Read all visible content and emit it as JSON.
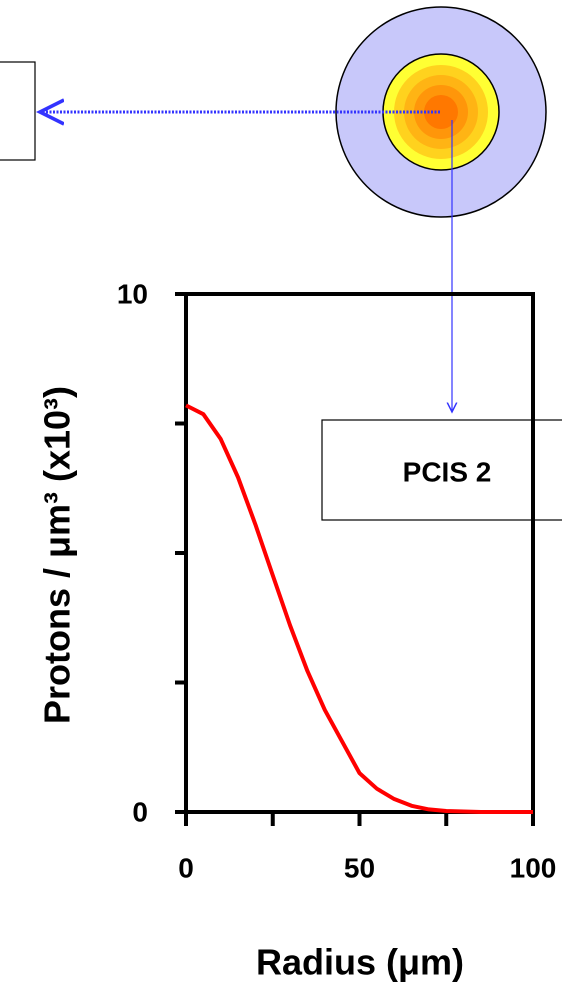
{
  "chart_data": {
    "type": "line",
    "x_label": "Radius (μm)",
    "y_label": "Protons / μm³ (x10³)",
    "annotation": "PCIS 2",
    "x": [
      0,
      5,
      10,
      15,
      20,
      25,
      30,
      35,
      40,
      45,
      50,
      55,
      60,
      65,
      70,
      75,
      80,
      85,
      90,
      95,
      100
    ],
    "series": [
      {
        "color": "#ff0000",
        "values": [
          7.85,
          7.68,
          7.2,
          6.46,
          5.55,
          4.57,
          3.6,
          2.72,
          1.97,
          1.36,
          0.75,
          0.45,
          0.25,
          0.12,
          0.05,
          0.02,
          0.01,
          0,
          0,
          0,
          0
        ]
      }
    ],
    "xlim": [
      0,
      100
    ],
    "xticks": [
      0,
      50,
      100
    ],
    "minor_xticks": [
      25,
      75
    ],
    "ylim": [
      0,
      10
    ],
    "yticks": [
      0,
      10
    ],
    "minor_yticks": [
      2.5,
      5,
      7.5
    ]
  }
}
